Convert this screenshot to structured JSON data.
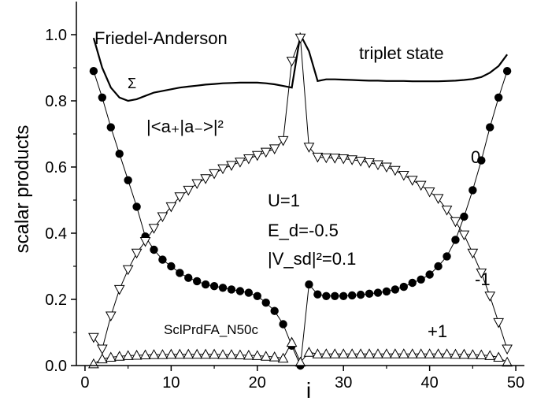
{
  "chart_data": {
    "type": "scatter",
    "title": "",
    "xlabel": "i",
    "ylabel": "scalar products",
    "xlim": [
      -1,
      51
    ],
    "ylim": [
      0.0,
      1.1
    ],
    "xticks": [
      0,
      10,
      20,
      30,
      40,
      50
    ],
    "xtick_labels": [
      "0",
      "10",
      "20",
      "30",
      "40",
      "50"
    ],
    "yticks": [
      0.0,
      0.2,
      0.4,
      0.6,
      0.8,
      1.0
    ],
    "ytick_labels": [
      "0.0",
      "0.2",
      "0.4",
      "0.6",
      "0.8",
      "1.0"
    ],
    "grid": false,
    "annotations": {
      "top_left": "Friedel-Anderson",
      "top_right": "triplet state",
      "sigma": "Σ",
      "overlap": "|<a₊|a₋>|²",
      "zero": "0",
      "minus_one": "-1",
      "plus_one": "+1",
      "param_u": "U=1",
      "param_ed": "E_d=-0.5",
      "param_vsd": "|V_sd|²=0.1",
      "file": "SclPrdFA_N50c"
    },
    "series": [
      {
        "marker": "line",
        "x": [
          1,
          2,
          3,
          4,
          5,
          6,
          7,
          8,
          9,
          10,
          11,
          12,
          13,
          14,
          15,
          16,
          17,
          18,
          19,
          20,
          21,
          22,
          23,
          24,
          25,
          26,
          27,
          28,
          29,
          30,
          31,
          32,
          33,
          34,
          35,
          36,
          37,
          38,
          39,
          40,
          41,
          42,
          43,
          44,
          45,
          46,
          47,
          48,
          49
        ],
        "values": [
          0.99,
          0.9,
          0.84,
          0.81,
          0.8,
          0.805,
          0.815,
          0.825,
          0.83,
          0.835,
          0.84,
          0.843,
          0.846,
          0.849,
          0.851,
          0.853,
          0.854,
          0.855,
          0.855,
          0.855,
          0.853,
          0.85,
          0.845,
          0.84,
          1.0,
          0.95,
          0.86,
          0.865,
          0.865,
          0.864,
          0.863,
          0.862,
          0.861,
          0.861,
          0.86,
          0.86,
          0.86,
          0.859,
          0.859,
          0.859,
          0.859,
          0.86,
          0.861,
          0.863,
          0.866,
          0.872,
          0.885,
          0.905,
          0.94
        ]
      },
      {
        "marker": "filled-circle",
        "x": [
          1,
          2,
          3,
          4,
          5,
          6,
          7,
          8,
          9,
          10,
          11,
          12,
          13,
          14,
          15,
          16,
          17,
          18,
          19,
          20,
          21,
          22,
          23,
          24,
          25,
          26,
          27,
          28,
          29,
          30,
          31,
          32,
          33,
          34,
          35,
          36,
          37,
          38,
          39,
          40,
          41,
          42,
          43,
          44,
          45,
          46,
          47,
          48,
          49
        ],
        "values": [
          0.89,
          0.81,
          0.72,
          0.64,
          0.56,
          0.48,
          0.39,
          0.35,
          0.32,
          0.3,
          0.28,
          0.265,
          0.255,
          0.245,
          0.24,
          0.235,
          0.23,
          0.225,
          0.22,
          0.21,
          0.19,
          0.165,
          0.125,
          0.06,
          0.0,
          0.245,
          0.215,
          0.21,
          0.21,
          0.21,
          0.212,
          0.214,
          0.217,
          0.22,
          0.224,
          0.23,
          0.238,
          0.25,
          0.26,
          0.275,
          0.3,
          0.33,
          0.38,
          0.45,
          0.53,
          0.62,
          0.72,
          0.81,
          0.89
        ]
      },
      {
        "marker": "open-triangle-down",
        "x": [
          1,
          2,
          3,
          4,
          5,
          6,
          7,
          8,
          9,
          10,
          11,
          12,
          13,
          14,
          15,
          16,
          17,
          18,
          19,
          20,
          21,
          22,
          23,
          24,
          25,
          26,
          27,
          28,
          29,
          30,
          31,
          32,
          33,
          34,
          35,
          36,
          37,
          38,
          39,
          40,
          41,
          42,
          43,
          44,
          45,
          46,
          47,
          48,
          49
        ],
        "values": [
          0.085,
          0.05,
          0.15,
          0.23,
          0.29,
          0.34,
          0.375,
          0.415,
          0.45,
          0.48,
          0.51,
          0.53,
          0.55,
          0.565,
          0.58,
          0.595,
          0.605,
          0.615,
          0.625,
          0.635,
          0.645,
          0.655,
          0.68,
          0.92,
          0.99,
          0.66,
          0.63,
          0.628,
          0.627,
          0.625,
          0.622,
          0.618,
          0.613,
          0.607,
          0.6,
          0.59,
          0.575,
          0.56,
          0.545,
          0.525,
          0.505,
          0.47,
          0.435,
          0.395,
          0.34,
          0.28,
          0.21,
          0.13,
          0.05
        ]
      },
      {
        "marker": "open-triangle-up",
        "x": [
          1,
          2,
          3,
          4,
          5,
          6,
          7,
          8,
          9,
          10,
          11,
          12,
          13,
          14,
          15,
          16,
          17,
          18,
          19,
          20,
          21,
          22,
          23,
          24,
          25,
          26,
          27,
          28,
          29,
          30,
          31,
          32,
          33,
          34,
          35,
          36,
          37,
          38,
          39,
          40,
          41,
          42,
          43,
          44,
          45,
          46,
          47,
          48,
          49
        ],
        "values": [
          0.005,
          0.02,
          0.025,
          0.028,
          0.03,
          0.031,
          0.032,
          0.033,
          0.033,
          0.034,
          0.034,
          0.034,
          0.034,
          0.034,
          0.034,
          0.033,
          0.033,
          0.032,
          0.031,
          0.03,
          0.028,
          0.026,
          0.022,
          0.07,
          0.01,
          0.04,
          0.035,
          0.035,
          0.035,
          0.035,
          0.035,
          0.035,
          0.035,
          0.035,
          0.035,
          0.035,
          0.035,
          0.035,
          0.035,
          0.035,
          0.035,
          0.035,
          0.034,
          0.034,
          0.033,
          0.032,
          0.03,
          0.025,
          0.01
        ]
      }
    ]
  }
}
